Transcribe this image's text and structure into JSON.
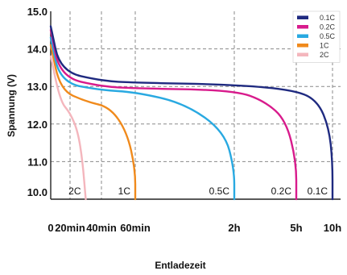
{
  "chart_data": {
    "type": "line",
    "xlabel": "Entladezeit",
    "ylabel": "Spannung (V)",
    "ylim": [
      10.0,
      15.0
    ],
    "y_ticks": [
      "15.0",
      "14.0",
      "13.0",
      "12.0",
      "11.0",
      "10.0"
    ],
    "x_tick_labels": [
      "0",
      "20min",
      "40min",
      "60min",
      "2h",
      "5h",
      "10h"
    ],
    "grid": true,
    "legend_position": "top-right",
    "curve_labels": [
      "2C",
      "1C",
      "0.5C",
      "0.2C",
      "0.1C"
    ],
    "series": [
      {
        "name": "0.1C",
        "color": "#1f2a80",
        "points": [
          [
            "0",
            14.6
          ],
          [
            "10min",
            13.4
          ],
          [
            "40min",
            13.15
          ],
          [
            "60min",
            13.1
          ],
          [
            "2h",
            13.05
          ],
          [
            "5h",
            12.9
          ],
          [
            "8h",
            12.6
          ],
          [
            "9.5h",
            11.9
          ],
          [
            "10h",
            11.0
          ],
          [
            "10h",
            10.0
          ]
        ]
      },
      {
        "name": "0.2C",
        "color": "#d81b8c",
        "points": [
          [
            "0",
            14.5
          ],
          [
            "10min",
            13.25
          ],
          [
            "40min",
            13.0
          ],
          [
            "60min",
            12.95
          ],
          [
            "2h",
            12.9
          ],
          [
            "3.5h",
            12.6
          ],
          [
            "4.5h",
            12.1
          ],
          [
            "5h",
            11.0
          ],
          [
            "5h",
            10.0
          ]
        ]
      },
      {
        "name": "0.5C",
        "color": "#29a9e1",
        "points": [
          [
            "0",
            14.3
          ],
          [
            "10min",
            13.1
          ],
          [
            "40min",
            12.9
          ],
          [
            "60min",
            12.85
          ],
          [
            "1.5h",
            12.55
          ],
          [
            "1.9h",
            11.8
          ],
          [
            "2h",
            10.8
          ],
          [
            "2h",
            10.0
          ]
        ]
      },
      {
        "name": "1C",
        "color": "#f08a1c",
        "points": [
          [
            "0",
            14.1
          ],
          [
            "10min",
            12.9
          ],
          [
            "30min",
            12.6
          ],
          [
            "45min",
            12.45
          ],
          [
            "55min",
            11.8
          ],
          [
            "60min",
            10.8
          ],
          [
            "60min",
            10.0
          ]
        ]
      },
      {
        "name": "2C",
        "color": "#f4b6bd",
        "points": [
          [
            "0",
            13.8
          ],
          [
            "10min",
            12.6
          ],
          [
            "20min",
            12.3
          ],
          [
            "25min",
            11.8
          ],
          [
            "28min",
            11.0
          ],
          [
            "30min",
            10.0
          ]
        ]
      }
    ]
  }
}
